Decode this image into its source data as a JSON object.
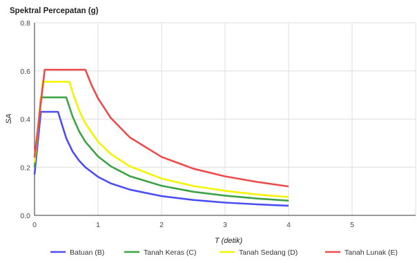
{
  "chart_data": {
    "type": "line",
    "title": "Spektral Percepatan (g)",
    "xlabel": "T (detik)",
    "ylabel": "SA",
    "xlim": [
      0,
      6
    ],
    "ylim": [
      0,
      0.8
    ],
    "xticks": [
      "0",
      "1",
      "2",
      "3",
      "4",
      "5"
    ],
    "yticks": [
      "0.0",
      "0.2",
      "0.4",
      "0.6",
      "0.8"
    ],
    "grid": true,
    "legend_position": "bottom",
    "series": [
      {
        "name": "Batuan (B)",
        "color": "#4a4ef2",
        "points": [
          [
            0,
            0.17
          ],
          [
            0.1,
            0.43
          ],
          [
            0.2,
            0.43
          ],
          [
            0.37,
            0.43
          ],
          [
            0.5,
            0.32
          ],
          [
            0.6,
            0.265
          ],
          [
            0.7,
            0.228
          ],
          [
            0.8,
            0.2
          ],
          [
            1.0,
            0.16
          ],
          [
            1.2,
            0.133
          ],
          [
            1.5,
            0.107
          ],
          [
            2.0,
            0.08
          ],
          [
            2.5,
            0.064
          ],
          [
            3.0,
            0.053
          ],
          [
            3.5,
            0.046
          ],
          [
            4.0,
            0.04
          ]
        ]
      },
      {
        "name": "Tanah Keras (C)",
        "color": "#3ca345",
        "points": [
          [
            0,
            0.2
          ],
          [
            0.1,
            0.49
          ],
          [
            0.2,
            0.49
          ],
          [
            0.5,
            0.49
          ],
          [
            0.6,
            0.41
          ],
          [
            0.7,
            0.35
          ],
          [
            0.8,
            0.306
          ],
          [
            1.0,
            0.245
          ],
          [
            1.2,
            0.204
          ],
          [
            1.5,
            0.163
          ],
          [
            2.0,
            0.123
          ],
          [
            2.5,
            0.098
          ],
          [
            3.0,
            0.082
          ],
          [
            3.5,
            0.07
          ],
          [
            4.0,
            0.061
          ]
        ]
      },
      {
        "name": "Tanah Sedang (D)",
        "color": "#f4f400",
        "points": [
          [
            0,
            0.22
          ],
          [
            0.13,
            0.555
          ],
          [
            0.2,
            0.555
          ],
          [
            0.55,
            0.555
          ],
          [
            0.6,
            0.51
          ],
          [
            0.7,
            0.437
          ],
          [
            0.8,
            0.382
          ],
          [
            1.0,
            0.306
          ],
          [
            1.2,
            0.255
          ],
          [
            1.5,
            0.204
          ],
          [
            2.0,
            0.153
          ],
          [
            2.5,
            0.122
          ],
          [
            3.0,
            0.102
          ],
          [
            3.5,
            0.087
          ],
          [
            4.0,
            0.076
          ]
        ]
      },
      {
        "name": "Tanah Lunak (E)",
        "color": "#ef4a4a",
        "points": [
          [
            0,
            0.24
          ],
          [
            0.16,
            0.605
          ],
          [
            0.2,
            0.605
          ],
          [
            0.8,
            0.605
          ],
          [
            0.9,
            0.54
          ],
          [
            1.0,
            0.486
          ],
          [
            1.2,
            0.405
          ],
          [
            1.5,
            0.324
          ],
          [
            2.0,
            0.243
          ],
          [
            2.5,
            0.194
          ],
          [
            3.0,
            0.162
          ],
          [
            3.5,
            0.139
          ],
          [
            4.0,
            0.12
          ]
        ]
      }
    ]
  }
}
